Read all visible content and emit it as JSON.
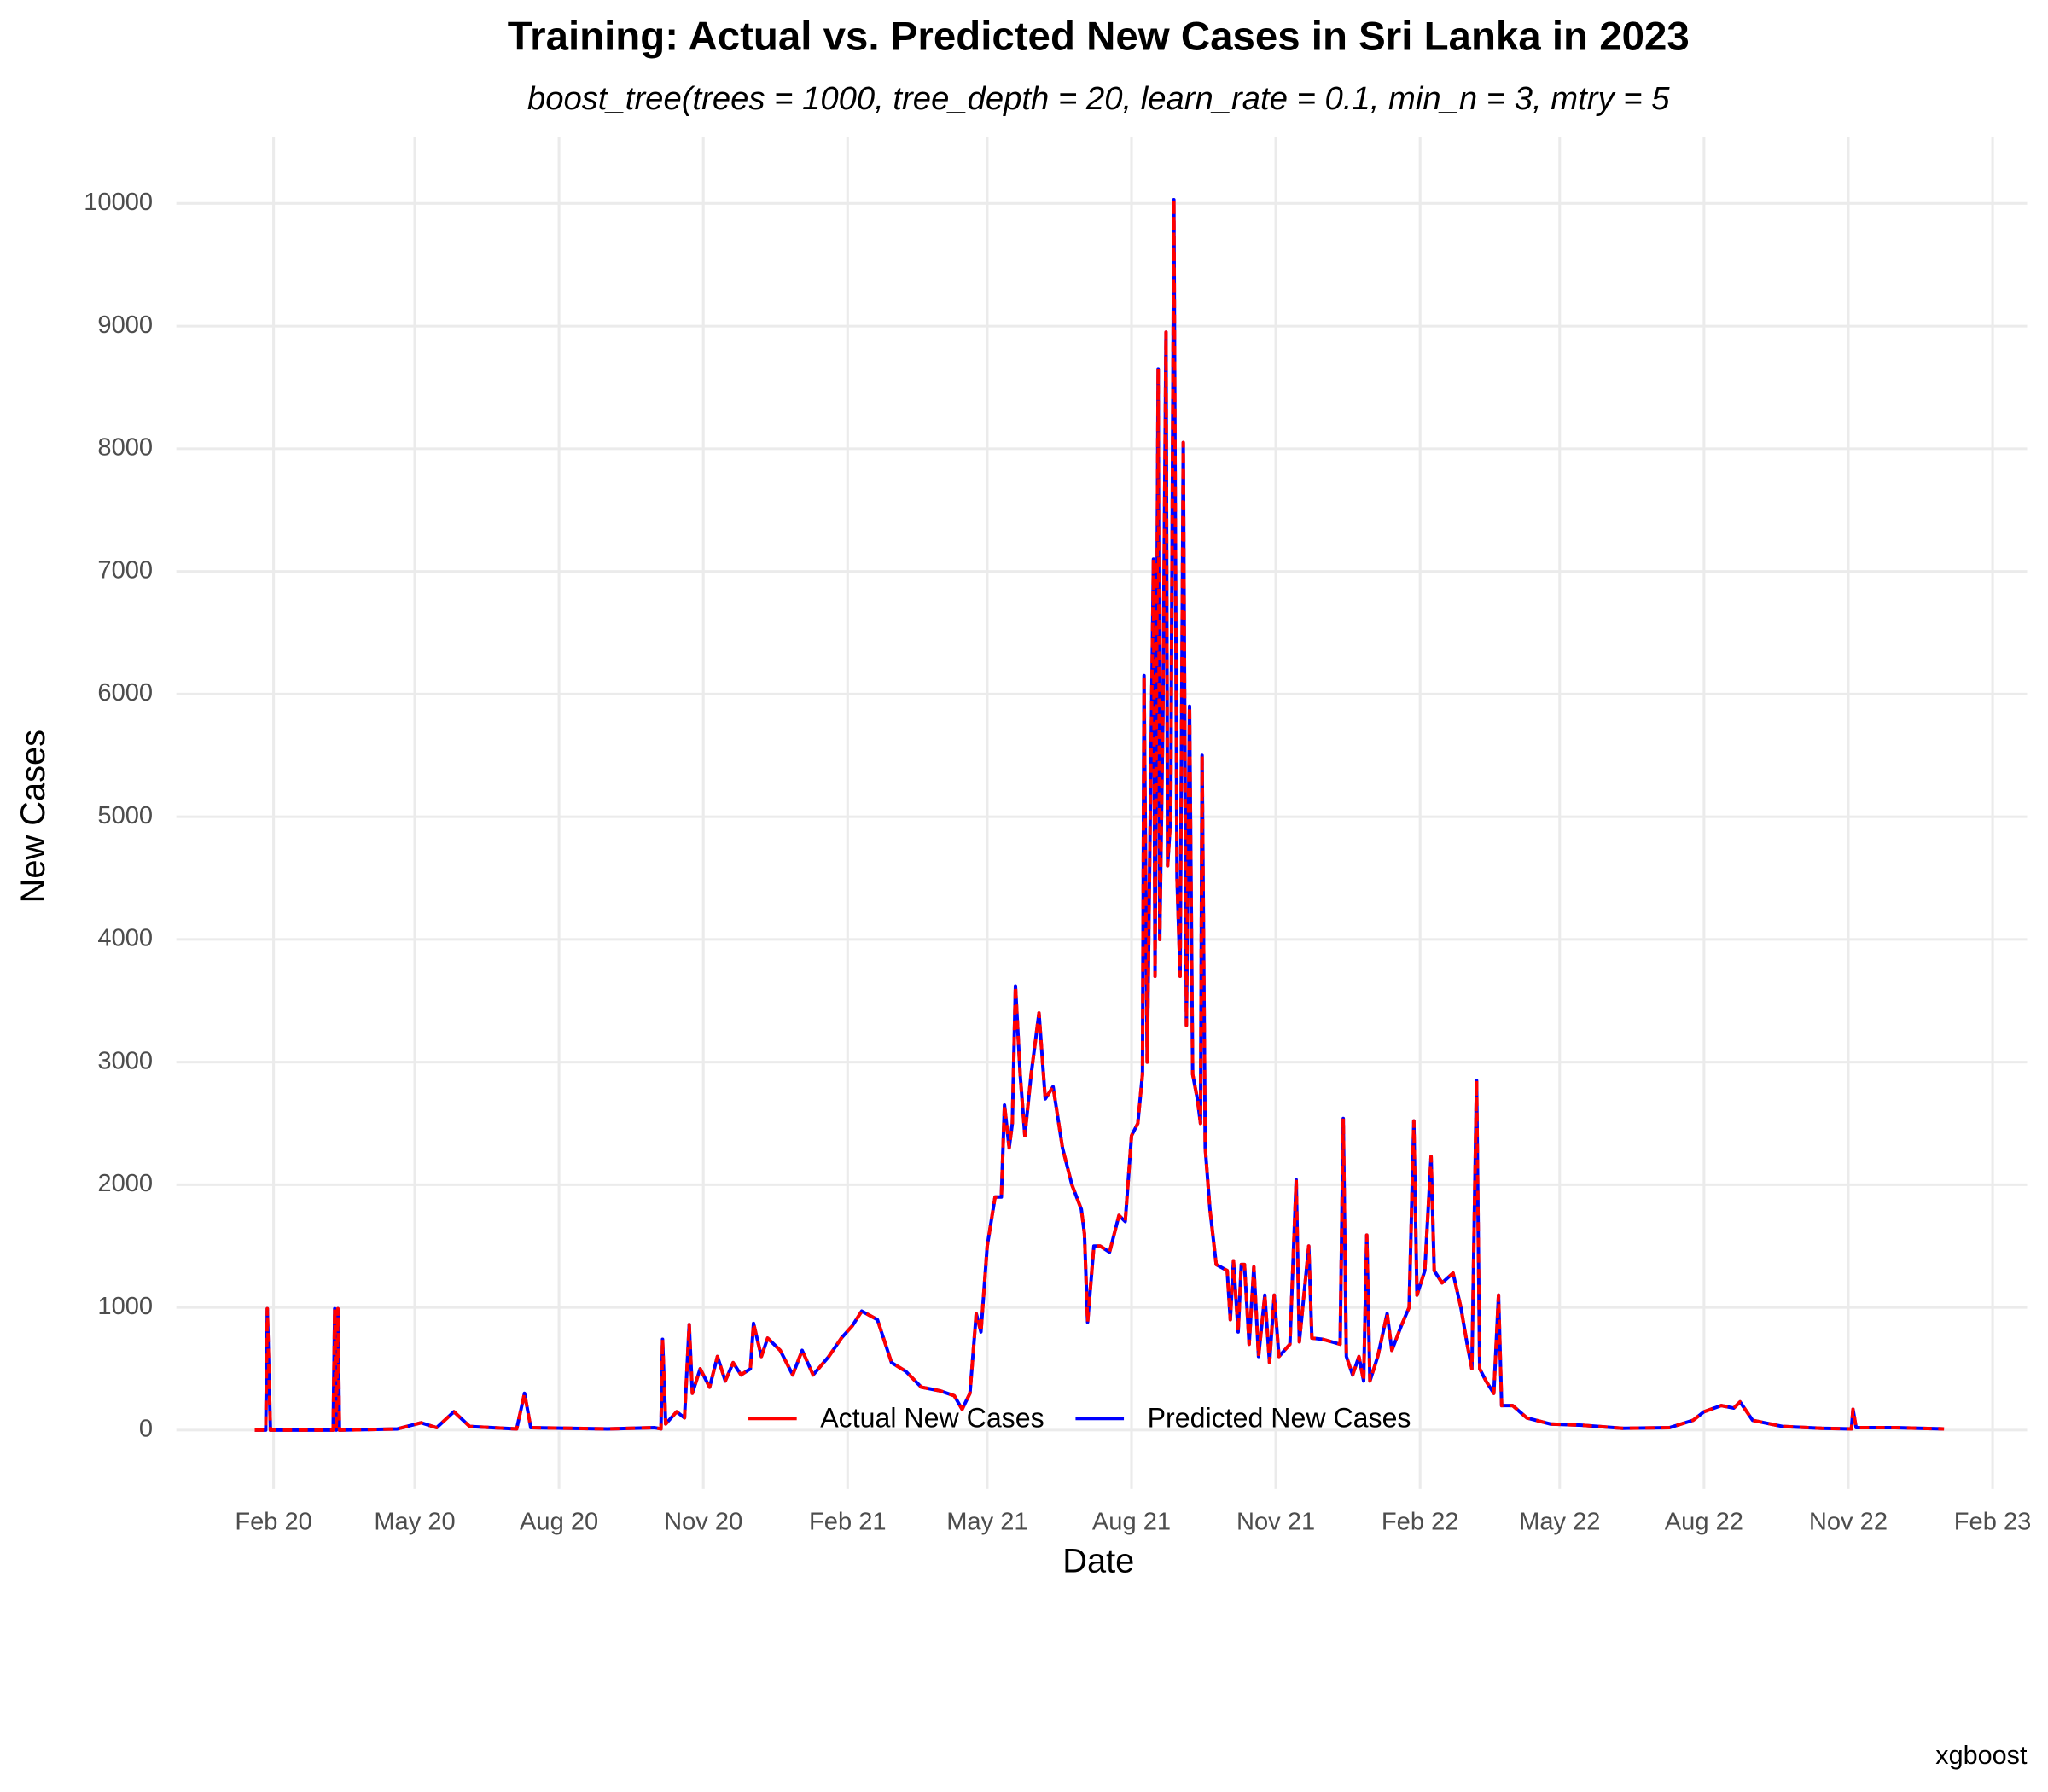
{
  "chart_data": {
    "type": "line",
    "title": "Training: Actual vs. Predicted New Cases in Sri Lanka in 2023",
    "subtitle": "boost_tree(trees = 1000, tree_depth = 20, learn_rate = 0.1, min_n = 3, mtry = 5",
    "x_label": "Date",
    "y_label": "New Cases",
    "caption": "xgboost",
    "x": [
      "2020-01-20",
      "2020-01-27",
      "2020-01-28",
      "2020-01-30",
      "2020-03-10",
      "2020-03-11",
      "2020-03-12",
      "2020-03-13",
      "2020-03-14",
      "2020-04-20",
      "2020-05-05",
      "2020-05-15",
      "2020-05-26",
      "2020-06-05",
      "2020-07-05",
      "2020-07-10",
      "2020-07-14",
      "2020-09-01",
      "2020-10-01",
      "2020-10-05",
      "2020-10-06",
      "2020-10-08",
      "2020-10-15",
      "2020-10-20",
      "2020-10-23",
      "2020-10-25",
      "2020-10-30",
      "2020-11-05",
      "2020-11-10",
      "2020-11-15",
      "2020-11-20",
      "2020-11-25",
      "2020-12-01",
      "2020-12-03",
      "2020-12-08",
      "2020-12-12",
      "2020-12-20",
      "2020-12-28",
      "2021-01-03",
      "2021-01-10",
      "2021-01-20",
      "2021-01-28",
      "2021-02-04",
      "2021-02-10",
      "2021-02-20",
      "2021-03-01",
      "2021-03-10",
      "2021-03-20",
      "2021-04-01",
      "2021-04-10",
      "2021-04-15",
      "2021-04-20",
      "2021-04-24",
      "2021-04-27",
      "2021-05-01",
      "2021-05-06",
      "2021-05-10",
      "2021-05-12",
      "2021-05-15",
      "2021-05-17",
      "2021-05-19",
      "2021-05-22",
      "2021-05-25",
      "2021-05-29",
      "2021-06-03",
      "2021-06-07",
      "2021-06-12",
      "2021-06-18",
      "2021-06-24",
      "2021-06-30",
      "2021-07-02",
      "2021-07-04",
      "2021-07-08",
      "2021-07-12",
      "2021-07-18",
      "2021-07-24",
      "2021-07-28",
      "2021-08-01",
      "2021-08-05",
      "2021-08-08",
      "2021-08-09",
      "2021-08-11",
      "2021-08-15",
      "2021-08-16",
      "2021-08-18",
      "2021-08-19",
      "2021-08-21",
      "2021-08-23",
      "2021-08-24",
      "2021-08-26",
      "2021-08-28",
      "2021-08-30",
      "2021-09-01",
      "2021-09-03",
      "2021-09-05",
      "2021-09-07",
      "2021-09-09",
      "2021-09-12",
      "2021-09-14",
      "2021-09-15",
      "2021-09-17",
      "2021-09-20",
      "2021-09-24",
      "2021-10-01",
      "2021-10-03",
      "2021-10-05",
      "2021-10-08",
      "2021-10-10",
      "2021-10-12",
      "2021-10-15",
      "2021-10-18",
      "2021-10-21",
      "2021-10-25",
      "2021-10-28",
      "2021-10-31",
      "2021-11-03",
      "2021-11-10",
      "2021-11-14",
      "2021-11-16",
      "2021-11-22",
      "2021-11-24",
      "2021-12-01",
      "2021-12-12",
      "2021-12-14",
      "2021-12-16",
      "2021-12-20",
      "2021-12-24",
      "2021-12-27",
      "2021-12-29",
      "2021-12-31",
      "2022-01-05",
      "2022-01-11",
      "2022-01-14",
      "2022-01-20",
      "2022-01-25",
      "2022-01-28",
      "2022-01-30",
      "2022-02-04",
      "2022-02-08",
      "2022-02-10",
      "2022-02-15",
      "2022-02-22",
      "2022-02-27",
      "2022-03-03",
      "2022-03-06",
      "2022-03-09",
      "2022-03-11",
      "2022-03-15",
      "2022-03-20",
      "2022-03-23",
      "2022-03-25",
      "2022-04-01",
      "2022-04-10",
      "2022-04-25",
      "2022-05-15",
      "2022-06-10",
      "2022-07-10",
      "2022-07-25",
      "2022-08-01",
      "2022-08-12",
      "2022-08-20",
      "2022-08-24",
      "2022-09-01",
      "2022-09-20",
      "2022-10-15",
      "2022-11-03",
      "2022-11-04",
      "2022-11-06",
      "2022-12-01",
      "2023-01-01"
    ],
    "series": [
      {
        "name": "Actual New Cases",
        "color": "#ff0000",
        "dashed": true,
        "values": [
          0,
          0,
          990,
          0,
          0,
          990,
          0,
          990,
          0,
          10,
          60,
          20,
          150,
          30,
          10,
          300,
          20,
          10,
          20,
          10,
          740,
          50,
          150,
          100,
          860,
          300,
          500,
          350,
          600,
          400,
          550,
          450,
          500,
          870,
          600,
          750,
          650,
          450,
          650,
          450,
          600,
          750,
          850,
          970,
          900,
          550,
          480,
          350,
          320,
          280,
          170,
          300,
          950,
          800,
          1500,
          1900,
          1900,
          2650,
          2300,
          2500,
          3620,
          2900,
          2400,
          2900,
          3400,
          2700,
          2800,
          2300,
          2000,
          1800,
          1600,
          880,
          1500,
          1500,
          1450,
          1750,
          1700,
          2400,
          2500,
          2900,
          6150,
          3000,
          7100,
          3700,
          8650,
          4000,
          5800,
          8950,
          4600,
          5000,
          10030,
          4500,
          3700,
          8050,
          3300,
          5900,
          2900,
          2700,
          2500,
          5500,
          2300,
          1800,
          1350,
          1300,
          900,
          1380,
          800,
          1350,
          1350,
          700,
          1330,
          600,
          1100,
          550,
          1100,
          600,
          700,
          2040,
          720,
          1500,
          750,
          740,
          700,
          2540,
          600,
          450,
          600,
          400,
          1590,
          400,
          600,
          950,
          650,
          850,
          1000,
          2520,
          1100,
          1300,
          2230,
          1300,
          1200,
          1280,
          1000,
          700,
          500,
          2850,
          500,
          400,
          300,
          1100,
          200,
          200,
          100,
          50,
          40,
          15,
          20,
          80,
          150,
          200,
          180,
          230,
          80,
          30,
          15,
          10,
          170,
          20,
          20,
          10
        ]
      },
      {
        "name": "Predicted New Cases",
        "color": "#0000ff",
        "dashed": false,
        "values": [
          0,
          0,
          990,
          0,
          0,
          990,
          0,
          990,
          0,
          10,
          60,
          20,
          150,
          30,
          10,
          300,
          20,
          10,
          20,
          10,
          740,
          50,
          150,
          100,
          860,
          300,
          500,
          350,
          600,
          400,
          550,
          450,
          500,
          870,
          600,
          750,
          650,
          450,
          650,
          450,
          600,
          750,
          850,
          970,
          900,
          550,
          480,
          350,
          320,
          280,
          170,
          300,
          950,
          800,
          1500,
          1900,
          1900,
          2650,
          2300,
          2500,
          3620,
          2900,
          2400,
          2900,
          3400,
          2700,
          2800,
          2300,
          2000,
          1800,
          1600,
          880,
          1500,
          1500,
          1450,
          1750,
          1700,
          2400,
          2500,
          2900,
          6150,
          3000,
          7100,
          3700,
          8650,
          4000,
          5800,
          8950,
          4600,
          5000,
          10030,
          4500,
          3700,
          8050,
          3300,
          5900,
          2900,
          2700,
          2500,
          5500,
          2300,
          1800,
          1350,
          1300,
          900,
          1380,
          800,
          1350,
          1350,
          700,
          1330,
          600,
          1100,
          550,
          1100,
          600,
          700,
          2040,
          720,
          1500,
          750,
          740,
          700,
          2540,
          600,
          450,
          600,
          400,
          1590,
          400,
          600,
          950,
          650,
          850,
          1000,
          2520,
          1100,
          1300,
          2230,
          1300,
          1200,
          1280,
          1000,
          700,
          500,
          2850,
          500,
          400,
          300,
          1100,
          200,
          200,
          100,
          50,
          40,
          15,
          20,
          80,
          150,
          200,
          180,
          230,
          80,
          30,
          15,
          10,
          170,
          20,
          20,
          10
        ]
      }
    ],
    "xlim": [
      "2019-12-01",
      "2023-02-23"
    ],
    "xticks": [
      {
        "value": "2020-02-01",
        "label": "Feb 20"
      },
      {
        "value": "2020-05-01",
        "label": "May 20"
      },
      {
        "value": "2020-08-01",
        "label": "Aug 20"
      },
      {
        "value": "2020-11-01",
        "label": "Nov 20"
      },
      {
        "value": "2021-02-01",
        "label": "Feb 21"
      },
      {
        "value": "2021-05-01",
        "label": "May 21"
      },
      {
        "value": "2021-08-01",
        "label": "Aug 21"
      },
      {
        "value": "2021-11-01",
        "label": "Nov 21"
      },
      {
        "value": "2022-02-01",
        "label": "Feb 22"
      },
      {
        "value": "2022-05-01",
        "label": "May 22"
      },
      {
        "value": "2022-08-01",
        "label": "Aug 22"
      },
      {
        "value": "2022-11-01",
        "label": "Nov 22"
      },
      {
        "value": "2023-02-01",
        "label": "Feb 23"
      }
    ],
    "ylim": [
      -480,
      10540
    ],
    "yticks": [
      0,
      1000,
      2000,
      3000,
      4000,
      5000,
      6000,
      7000,
      8000,
      9000,
      10000
    ],
    "grid": true,
    "legend": "bottom"
  }
}
